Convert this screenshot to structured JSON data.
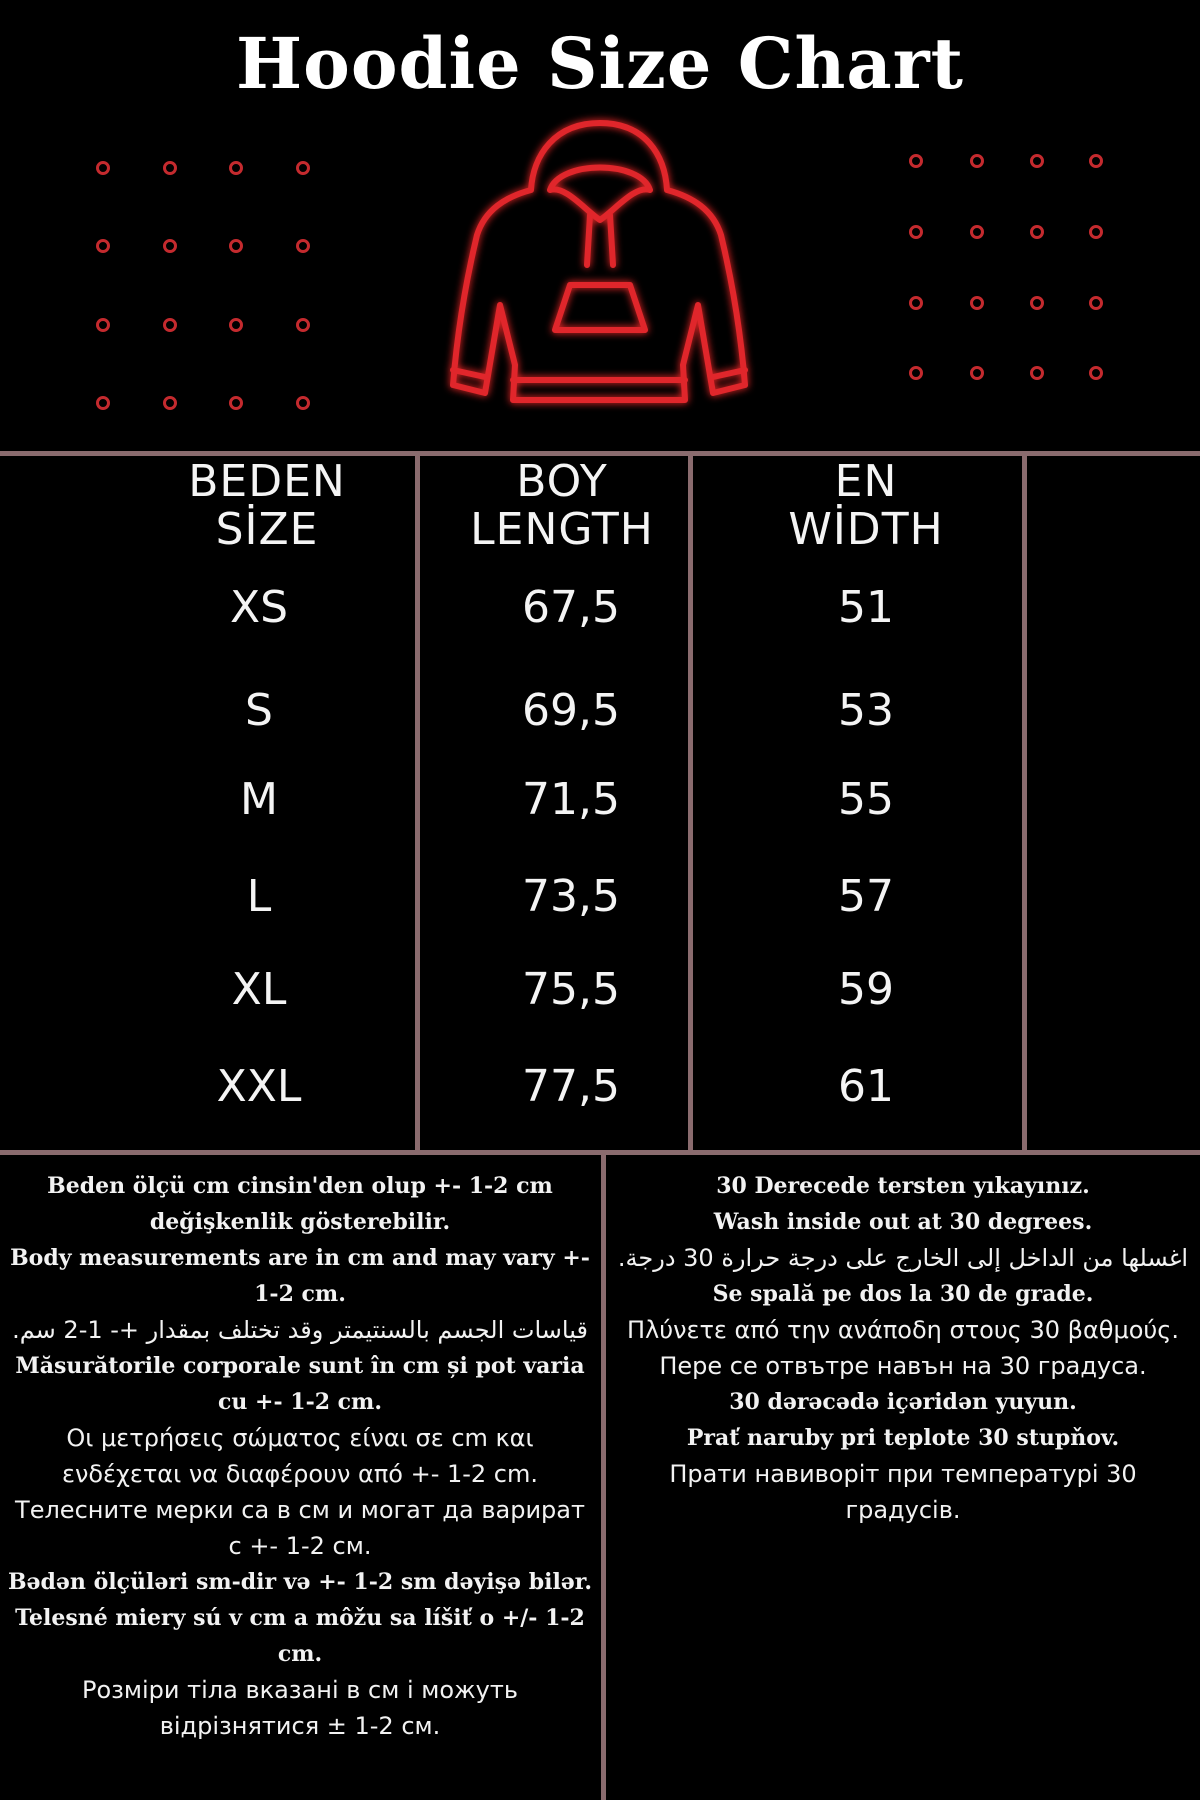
{
  "title": "Hoodie Size Chart",
  "colors": {
    "accent_red": "#c42a2e",
    "divider": "#8a6b6e",
    "background": "#000000"
  },
  "illustration": "hoodie-icon",
  "table": {
    "headers": [
      {
        "line1": "BEDEN",
        "line2": "SİZE"
      },
      {
        "line1": "BOY",
        "line2": "LENGTH"
      },
      {
        "line1": "EN",
        "line2": "WİDTH"
      }
    ],
    "rows": [
      {
        "size": "XS",
        "length": "67,5",
        "width": "51"
      },
      {
        "size": "S",
        "length": "69,5",
        "width": "53"
      },
      {
        "size": "M",
        "length": "71,5",
        "width": "55"
      },
      {
        "size": "L",
        "length": "73,5",
        "width": "57"
      },
      {
        "size": "XL",
        "length": "75,5",
        "width": "59"
      },
      {
        "size": "XXL",
        "length": "77,5",
        "width": "61"
      }
    ]
  },
  "notes_measurement": [
    "Beden ölçü cm cinsin'den olup +- 1-2 cm değişkenlik gösterebilir.",
    "Body measurements are in cm and may vary +- 1-2 cm.",
    "قياسات الجسم بالسنتيمتر وقد تختلف بمقدار +- 1-2 سم.",
    "Măsurătorile corporale sunt în cm și pot varia cu +- 1-2 cm.",
    "Οι μετρήσεις σώματος είναι σε cm και ενδέχεται να διαφέρουν από +- 1-2 cm.",
    "Телесните мерки са в см и могат да варират с +- 1-2 см.",
    "Bədən ölçüləri sm-dir və +- 1-2 sm dəyişə bilər.",
    "Telesné miery sú v cm a môžu sa líšiť o +/- 1-2 cm.",
    "Розміри тіла вказані в см і можуть відрізнятися ± 1-2 см."
  ],
  "notes_washing": [
    "30 Derecede tersten yıkayınız.",
    "Wash inside out at 30 degrees.",
    "اغسلها من الداخل إلى الخارج على درجة حرارة 30 درجة.",
    "Se spală pe dos la 30 de grade.",
    "Πλύνετε από την ανάποδη στους 30 βαθμούς.",
    "Пере се отвътре навън на 30 градуса.",
    "30 dərəcədə içəridən yuyun.",
    "Prať naruby pri teplote 30 stupňov.",
    "Прати навиворіт при температурі 30 градусів."
  ]
}
